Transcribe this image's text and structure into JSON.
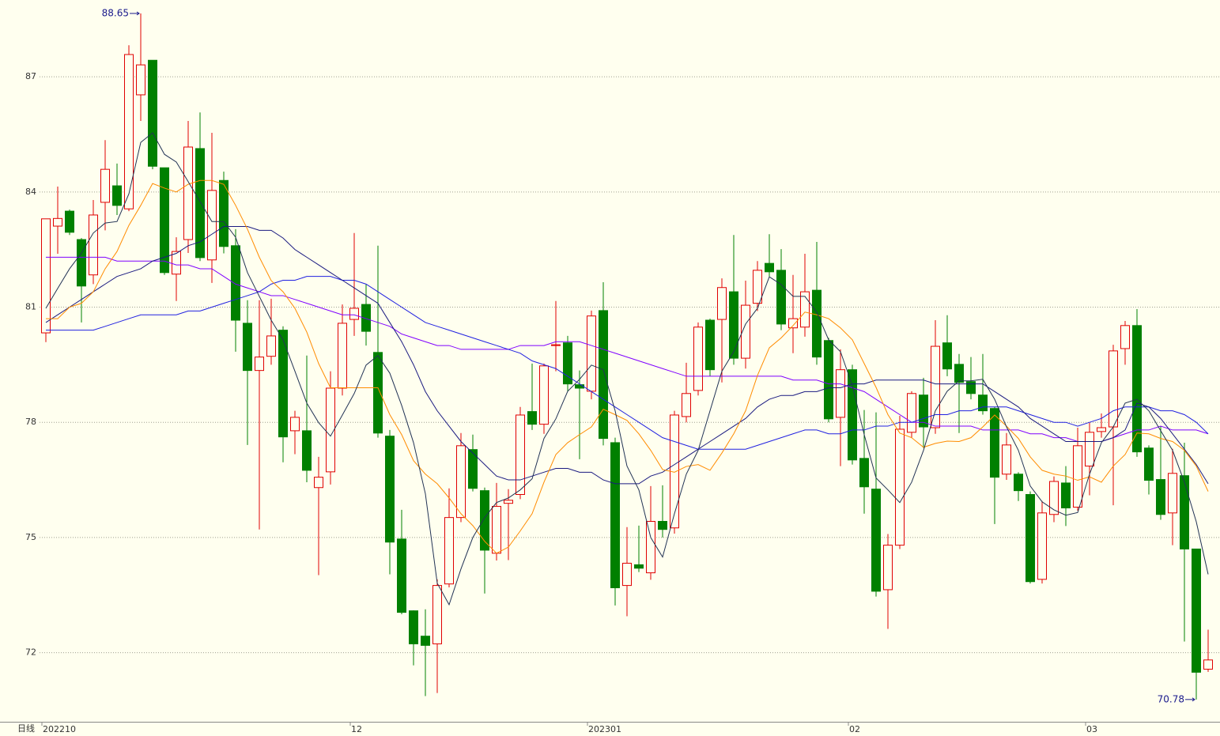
{
  "chart_data": {
    "type": "candlestick",
    "period_label": "日线",
    "max_label": "88.65",
    "min_label": "70.78",
    "categories": [
      "202210",
      null,
      null,
      null,
      null,
      null,
      null,
      null,
      null,
      null,
      null,
      null,
      null,
      null,
      null,
      null,
      null,
      null,
      null,
      null,
      null,
      null,
      null,
      null,
      null,
      null,
      "12",
      null,
      null,
      null,
      null,
      null,
      null,
      null,
      null,
      null,
      null,
      null,
      null,
      null,
      null,
      null,
      null,
      null,
      null,
      null,
      "202301",
      null,
      null,
      null,
      null,
      null,
      null,
      null,
      null,
      null,
      null,
      null,
      null,
      null,
      null,
      null,
      null,
      null,
      null,
      null,
      null,
      null,
      "02",
      null,
      null,
      null,
      null,
      null,
      null,
      null,
      null,
      null,
      null,
      null,
      null,
      null,
      null,
      null,
      null,
      null,
      null,
      null,
      "03",
      null,
      null,
      null,
      null,
      null,
      null,
      null,
      null,
      null,
      null
    ],
    "open": [
      80.33,
      83.11,
      83.5,
      82.76,
      81.84,
      83.73,
      84.16,
      83.56,
      86.53,
      87.43,
      84.63,
      81.86,
      82.76,
      85.13,
      82.23,
      84.3,
      82.6,
      80.58,
      79.35,
      79.72,
      80.4,
      77.78,
      77.78,
      76.3,
      76.71,
      78.89,
      80.68,
      81.07,
      79.82,
      77.64,
      74.96,
      73.09,
      72.43,
      72.23,
      73.79,
      75.52,
      77.29,
      76.22,
      74.59,
      75.89,
      76.12,
      78.28,
      77.95,
      80.0,
      80.07,
      78.98,
      78.81,
      80.91,
      77.47,
      73.75,
      74.29,
      74.08,
      75.42,
      75.25,
      78.15,
      78.83,
      80.66,
      80.68,
      81.4,
      79.67,
      81.1,
      82.14,
      81.96,
      80.46,
      80.48,
      81.44,
      80.13,
      78.13,
      79.37,
      77.06,
      76.26,
      73.64,
      74.8,
      77.74,
      78.71,
      77.86,
      80.07,
      79.51,
      79.06,
      78.71,
      78.36,
      76.65,
      76.65,
      76.12,
      73.91,
      75.6,
      76.42,
      75.79,
      76.86,
      77.76,
      77.88,
      79.92,
      80.52,
      77.33,
      76.51,
      75.64,
      76.61,
      74.7,
      71.57
    ],
    "high": [
      83.3,
      84.14,
      83.54,
      82.8,
      83.79,
      85.35,
      84.74,
      87.82,
      88.65,
      87.43,
      84.63,
      82.82,
      85.85,
      86.07,
      85.54,
      84.53,
      83.03,
      81.18,
      81.18,
      81.22,
      80.5,
      78.3,
      79.74,
      77.1,
      79.33,
      81.07,
      82.93,
      81.59,
      82.6,
      77.8,
      75.72,
      73.1,
      73.13,
      73.91,
      76.28,
      77.72,
      77.68,
      76.3,
      76.42,
      76.26,
      78.4,
      79.53,
      79.53,
      81.16,
      80.25,
      79.35,
      80.91,
      81.65,
      77.6,
      75.27,
      75.31,
      76.34,
      76.36,
      78.3,
      79.55,
      80.6,
      80.7,
      81.75,
      82.88,
      81.69,
      82.2,
      82.9,
      82.51,
      81.84,
      82.39,
      82.7,
      80.2,
      79.9,
      79.5,
      78.32,
      78.26,
      75.09,
      78.17,
      78.81,
      79.16,
      80.66,
      80.79,
      79.78,
      79.7,
      79.78,
      78.4,
      77.72,
      76.7,
      76.2,
      75.95,
      76.59,
      76.86,
      77.86,
      77.99,
      78.23,
      80.02,
      80.64,
      80.95,
      77.4,
      77.9,
      77.31,
      77.47,
      74.7,
      72.6
    ],
    "low": [
      80.09,
      82.39,
      82.88,
      80.6,
      81.6,
      83.0,
      83.4,
      83.5,
      85.85,
      84.59,
      81.84,
      81.16,
      82.41,
      82.2,
      81.63,
      82.4,
      79.84,
      77.41,
      75.21,
      79.5,
      76.96,
      77.17,
      76.44,
      74.02,
      76.38,
      78.7,
      80.25,
      80.0,
      77.6,
      74.04,
      73.0,
      71.67,
      70.87,
      70.95,
      73.7,
      75.4,
      76.2,
      73.54,
      74.4,
      74.41,
      76.0,
      77.8,
      77.7,
      79.33,
      78.8,
      77.04,
      78.6,
      77.4,
      73.23,
      72.95,
      74.1,
      73.9,
      75.0,
      75.1,
      78.0,
      78.7,
      79.2,
      79.04,
      79.5,
      79.4,
      80.9,
      81.8,
      80.4,
      79.8,
      80.23,
      79.5,
      78.0,
      76.86,
      76.9,
      75.62,
      73.46,
      72.62,
      74.7,
      77.6,
      77.33,
      77.7,
      79.2,
      77.72,
      78.6,
      78.2,
      75.35,
      76.5,
      75.95,
      73.8,
      73.8,
      75.4,
      75.3,
      75.7,
      76.1,
      77.6,
      75.84,
      79.5,
      77.1,
      76.12,
      75.46,
      74.8,
      72.29,
      70.78,
      71.5
    ],
    "close": [
      83.3,
      83.31,
      82.95,
      81.55,
      83.4,
      84.59,
      83.65,
      87.58,
      87.31,
      84.67,
      81.9,
      82.45,
      85.17,
      82.29,
      84.04,
      82.58,
      80.66,
      79.35,
      79.7,
      80.25,
      77.62,
      78.13,
      76.75,
      76.57,
      78.89,
      80.58,
      80.97,
      80.37,
      77.72,
      74.88,
      73.05,
      72.23,
      72.19,
      73.75,
      75.52,
      77.39,
      76.28,
      74.67,
      75.81,
      75.97,
      78.19,
      77.95,
      79.47,
      80.02,
      79.0,
      78.89,
      80.77,
      77.58,
      73.69,
      74.33,
      74.2,
      75.42,
      75.21,
      78.19,
      78.75,
      80.48,
      79.37,
      81.51,
      79.67,
      81.05,
      81.96,
      81.92,
      80.56,
      80.7,
      81.4,
      79.7,
      78.09,
      79.37,
      77.02,
      76.32,
      73.6,
      74.8,
      77.82,
      78.75,
      77.88,
      79.98,
      79.39,
      79.04,
      78.75,
      78.3,
      76.57,
      77.41,
      76.22,
      73.85,
      75.64,
      76.46,
      75.77,
      77.39,
      77.74,
      77.86,
      79.86,
      80.52,
      77.23,
      76.49,
      75.6,
      76.67,
      74.7,
      71.49,
      71.81
    ],
    "up_color": "#e00000",
    "down_color": "#008000",
    "moving_averages": [
      {
        "color": "#7f00ff",
        "values": [
          82.3,
          82.3,
          82.3,
          82.3,
          82.3,
          82.3,
          82.2,
          82.2,
          82.2,
          82.2,
          82.2,
          82.1,
          82.1,
          82.0,
          82.0,
          81.8,
          81.6,
          81.5,
          81.4,
          81.3,
          81.3,
          81.2,
          81.1,
          81.0,
          80.9,
          80.8,
          80.8,
          80.7,
          80.6,
          80.5,
          80.3,
          80.2,
          80.1,
          80.0,
          80.0,
          79.9,
          79.9,
          79.9,
          79.9,
          79.9,
          80.0,
          80.0,
          80.0,
          80.1,
          80.1,
          80.1,
          80.0,
          79.9,
          79.8,
          79.7,
          79.6,
          79.5,
          79.4,
          79.3,
          79.2,
          79.2,
          79.2,
          79.2,
          79.2,
          79.2,
          79.2,
          79.2,
          79.2,
          79.1,
          79.1,
          79.1,
          79.0,
          79.0,
          78.9,
          78.8,
          78.6,
          78.4,
          78.2,
          78.0,
          78.0,
          77.9,
          77.9,
          77.9,
          77.9,
          77.8,
          77.8,
          77.8,
          77.8,
          77.7,
          77.7,
          77.6,
          77.6,
          77.5,
          77.5,
          77.5,
          77.6,
          77.7,
          77.8,
          77.8,
          77.9,
          77.8,
          77.8,
          77.8,
          77.7
        ]
      },
      {
        "color": "#2020e0",
        "values": [
          80.4,
          80.4,
          80.4,
          80.4,
          80.4,
          80.5,
          80.6,
          80.7,
          80.8,
          80.8,
          80.8,
          80.8,
          80.9,
          80.9,
          81.0,
          81.1,
          81.2,
          81.3,
          81.4,
          81.6,
          81.7,
          81.7,
          81.8,
          81.8,
          81.8,
          81.7,
          81.7,
          81.6,
          81.4,
          81.2,
          81.0,
          80.8,
          80.6,
          80.5,
          80.4,
          80.3,
          80.2,
          80.1,
          80.0,
          79.9,
          79.8,
          79.6,
          79.5,
          79.4,
          79.2,
          79.0,
          78.8,
          78.6,
          78.4,
          78.2,
          78.0,
          77.8,
          77.6,
          77.5,
          77.4,
          77.3,
          77.3,
          77.3,
          77.3,
          77.3,
          77.4,
          77.5,
          77.6,
          77.7,
          77.8,
          77.8,
          77.7,
          77.7,
          77.8,
          77.8,
          77.9,
          77.9,
          78.0,
          78.0,
          78.1,
          78.2,
          78.2,
          78.3,
          78.3,
          78.4,
          78.4,
          78.4,
          78.3,
          78.2,
          78.1,
          78.0,
          78.0,
          77.9,
          78.0,
          78.1,
          78.3,
          78.4,
          78.4,
          78.4,
          78.3,
          78.3,
          78.2,
          78.0,
          77.7
        ]
      },
      {
        "color": "#1a1a80",
        "values": [
          80.6,
          80.8,
          81.0,
          81.2,
          81.4,
          81.6,
          81.8,
          81.9,
          82.0,
          82.2,
          82.3,
          82.4,
          82.6,
          82.7,
          82.9,
          83.1,
          83.1,
          83.1,
          83.0,
          83.0,
          82.8,
          82.5,
          82.3,
          82.1,
          81.9,
          81.7,
          81.5,
          81.3,
          81.1,
          80.6,
          80.1,
          79.5,
          78.8,
          78.3,
          77.9,
          77.5,
          77.2,
          76.9,
          76.6,
          76.5,
          76.5,
          76.6,
          76.7,
          76.8,
          76.8,
          76.7,
          76.7,
          76.5,
          76.4,
          76.4,
          76.4,
          76.6,
          76.7,
          76.9,
          77.1,
          77.3,
          77.5,
          77.7,
          77.9,
          78.1,
          78.4,
          78.6,
          78.7,
          78.7,
          78.8,
          78.8,
          78.9,
          78.9,
          79.0,
          79.0,
          79.1,
          79.1,
          79.1,
          79.1,
          79.1,
          79.0,
          79.0,
          79.0,
          79.0,
          79.0,
          78.8,
          78.6,
          78.4,
          78.1,
          77.9,
          77.7,
          77.5,
          77.5,
          77.5,
          77.5,
          77.6,
          77.8,
          78.5,
          78.4,
          78.1,
          77.7,
          77.3,
          76.9,
          76.4
        ]
      },
      {
        "color": "#ff8c00",
        "values": [
          80.7,
          80.7,
          81.0,
          81.1,
          81.4,
          82.0,
          82.45,
          83.13,
          83.65,
          84.22,
          84.1,
          84.0,
          84.2,
          84.3,
          84.3,
          84.2,
          83.65,
          83.03,
          82.3,
          81.69,
          81.4,
          80.97,
          80.35,
          79.53,
          78.9,
          78.9,
          78.9,
          78.9,
          78.9,
          78.2,
          77.68,
          77.0,
          76.65,
          76.4,
          76.03,
          75.62,
          75.31,
          74.9,
          74.59,
          74.75,
          75.17,
          75.62,
          76.44,
          77.16,
          77.47,
          77.68,
          77.88,
          78.34,
          78.2,
          78.05,
          77.7,
          77.27,
          76.77,
          76.7,
          76.85,
          76.9,
          76.75,
          77.2,
          77.7,
          78.3,
          79.22,
          79.94,
          80.2,
          80.52,
          80.87,
          80.8,
          80.7,
          80.46,
          80.15,
          79.53,
          78.91,
          78.2,
          77.72,
          77.6,
          77.35,
          77.45,
          77.51,
          77.5,
          77.6,
          77.88,
          78.19,
          77.9,
          77.58,
          77.1,
          76.75,
          76.65,
          76.6,
          76.49,
          76.58,
          76.44,
          76.86,
          77.16,
          77.72,
          77.7,
          77.58,
          77.5,
          77.27,
          76.86,
          76.2
        ]
      },
      {
        "color": "#223355",
        "values": [
          80.97,
          81.49,
          82.0,
          82.41,
          82.93,
          83.19,
          83.23,
          83.95,
          85.29,
          85.54,
          84.98,
          84.78,
          84.27,
          83.75,
          83.23,
          83.23,
          82.82,
          81.9,
          81.28,
          80.66,
          80.15,
          79.33,
          78.5,
          77.99,
          77.64,
          78.19,
          78.75,
          79.49,
          79.74,
          79.28,
          78.44,
          77.47,
          76.14,
          73.81,
          73.25,
          74.18,
          75.0,
          75.52,
          75.91,
          76.03,
          76.24,
          76.53,
          77.58,
          78.09,
          78.81,
          79.12,
          79.49,
          79.37,
          78.3,
          76.86,
          76.24,
          75.0,
          74.49,
          75.62,
          76.65,
          77.27,
          78.3,
          79.33,
          79.84,
          80.56,
          80.97,
          81.79,
          81.59,
          81.28,
          81.28,
          80.87,
          80.15,
          79.84,
          78.96,
          77.68,
          76.55,
          76.24,
          75.91,
          76.44,
          77.27,
          78.3,
          78.81,
          79.08,
          79.08,
          79.12,
          78.6,
          77.88,
          77.27,
          76.34,
          75.93,
          75.72,
          75.58,
          75.65,
          76.65,
          77.47,
          77.88,
          78.5,
          78.6,
          78.3,
          77.78,
          77.27,
          76.44,
          75.41,
          74.04
        ]
      }
    ],
    "ylim": [
      70.2,
      89.0
    ],
    "yticks": [
      72,
      75,
      78,
      81,
      84,
      87
    ],
    "grid": true
  }
}
